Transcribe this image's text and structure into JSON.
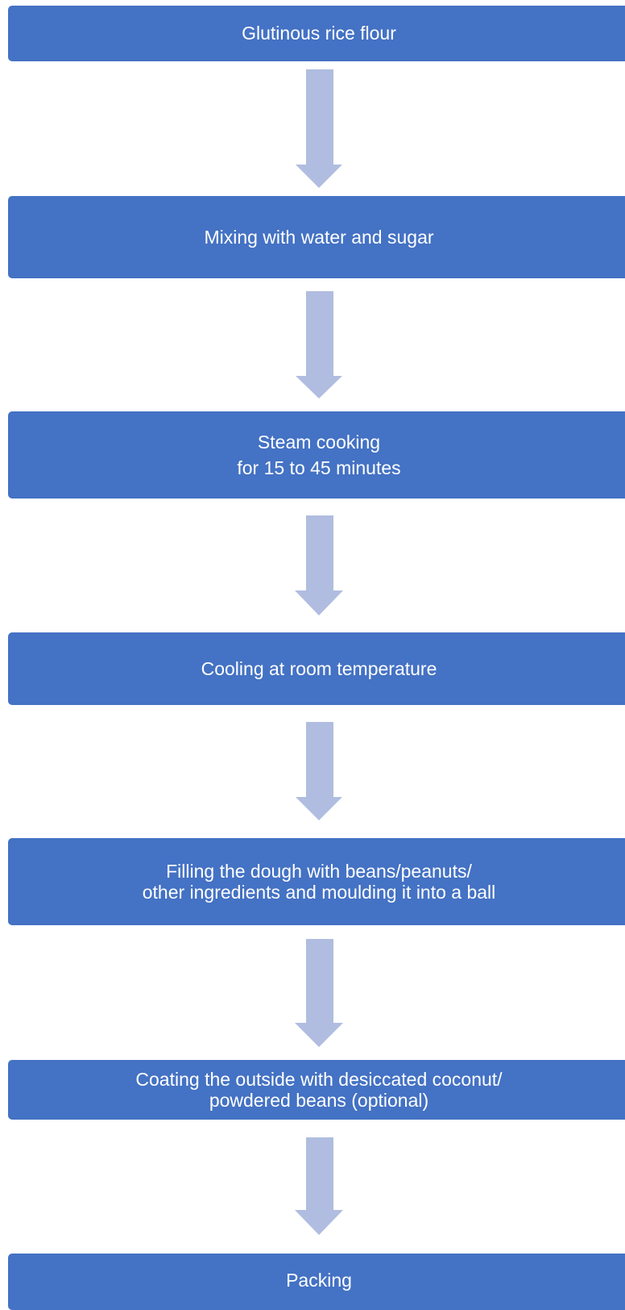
{
  "steps": [
    {
      "lines": [
        "Glutinous rice flour"
      ]
    },
    {
      "lines": [
        "Mixing with water and sugar"
      ]
    },
    {
      "lines": [
        "Steam cooking",
        "for 15 to 45 minutes"
      ]
    },
    {
      "lines": [
        "Cooling at room temperature"
      ]
    },
    {
      "lines": [
        "Filling the dough with beans/peanuts/",
        "other ingredients and moulding it into a ball"
      ]
    },
    {
      "lines": [
        "Coating the outside with desiccated coconut/",
        "powdered beans (optional)"
      ]
    },
    {
      "lines": [
        "Packing"
      ]
    }
  ]
}
